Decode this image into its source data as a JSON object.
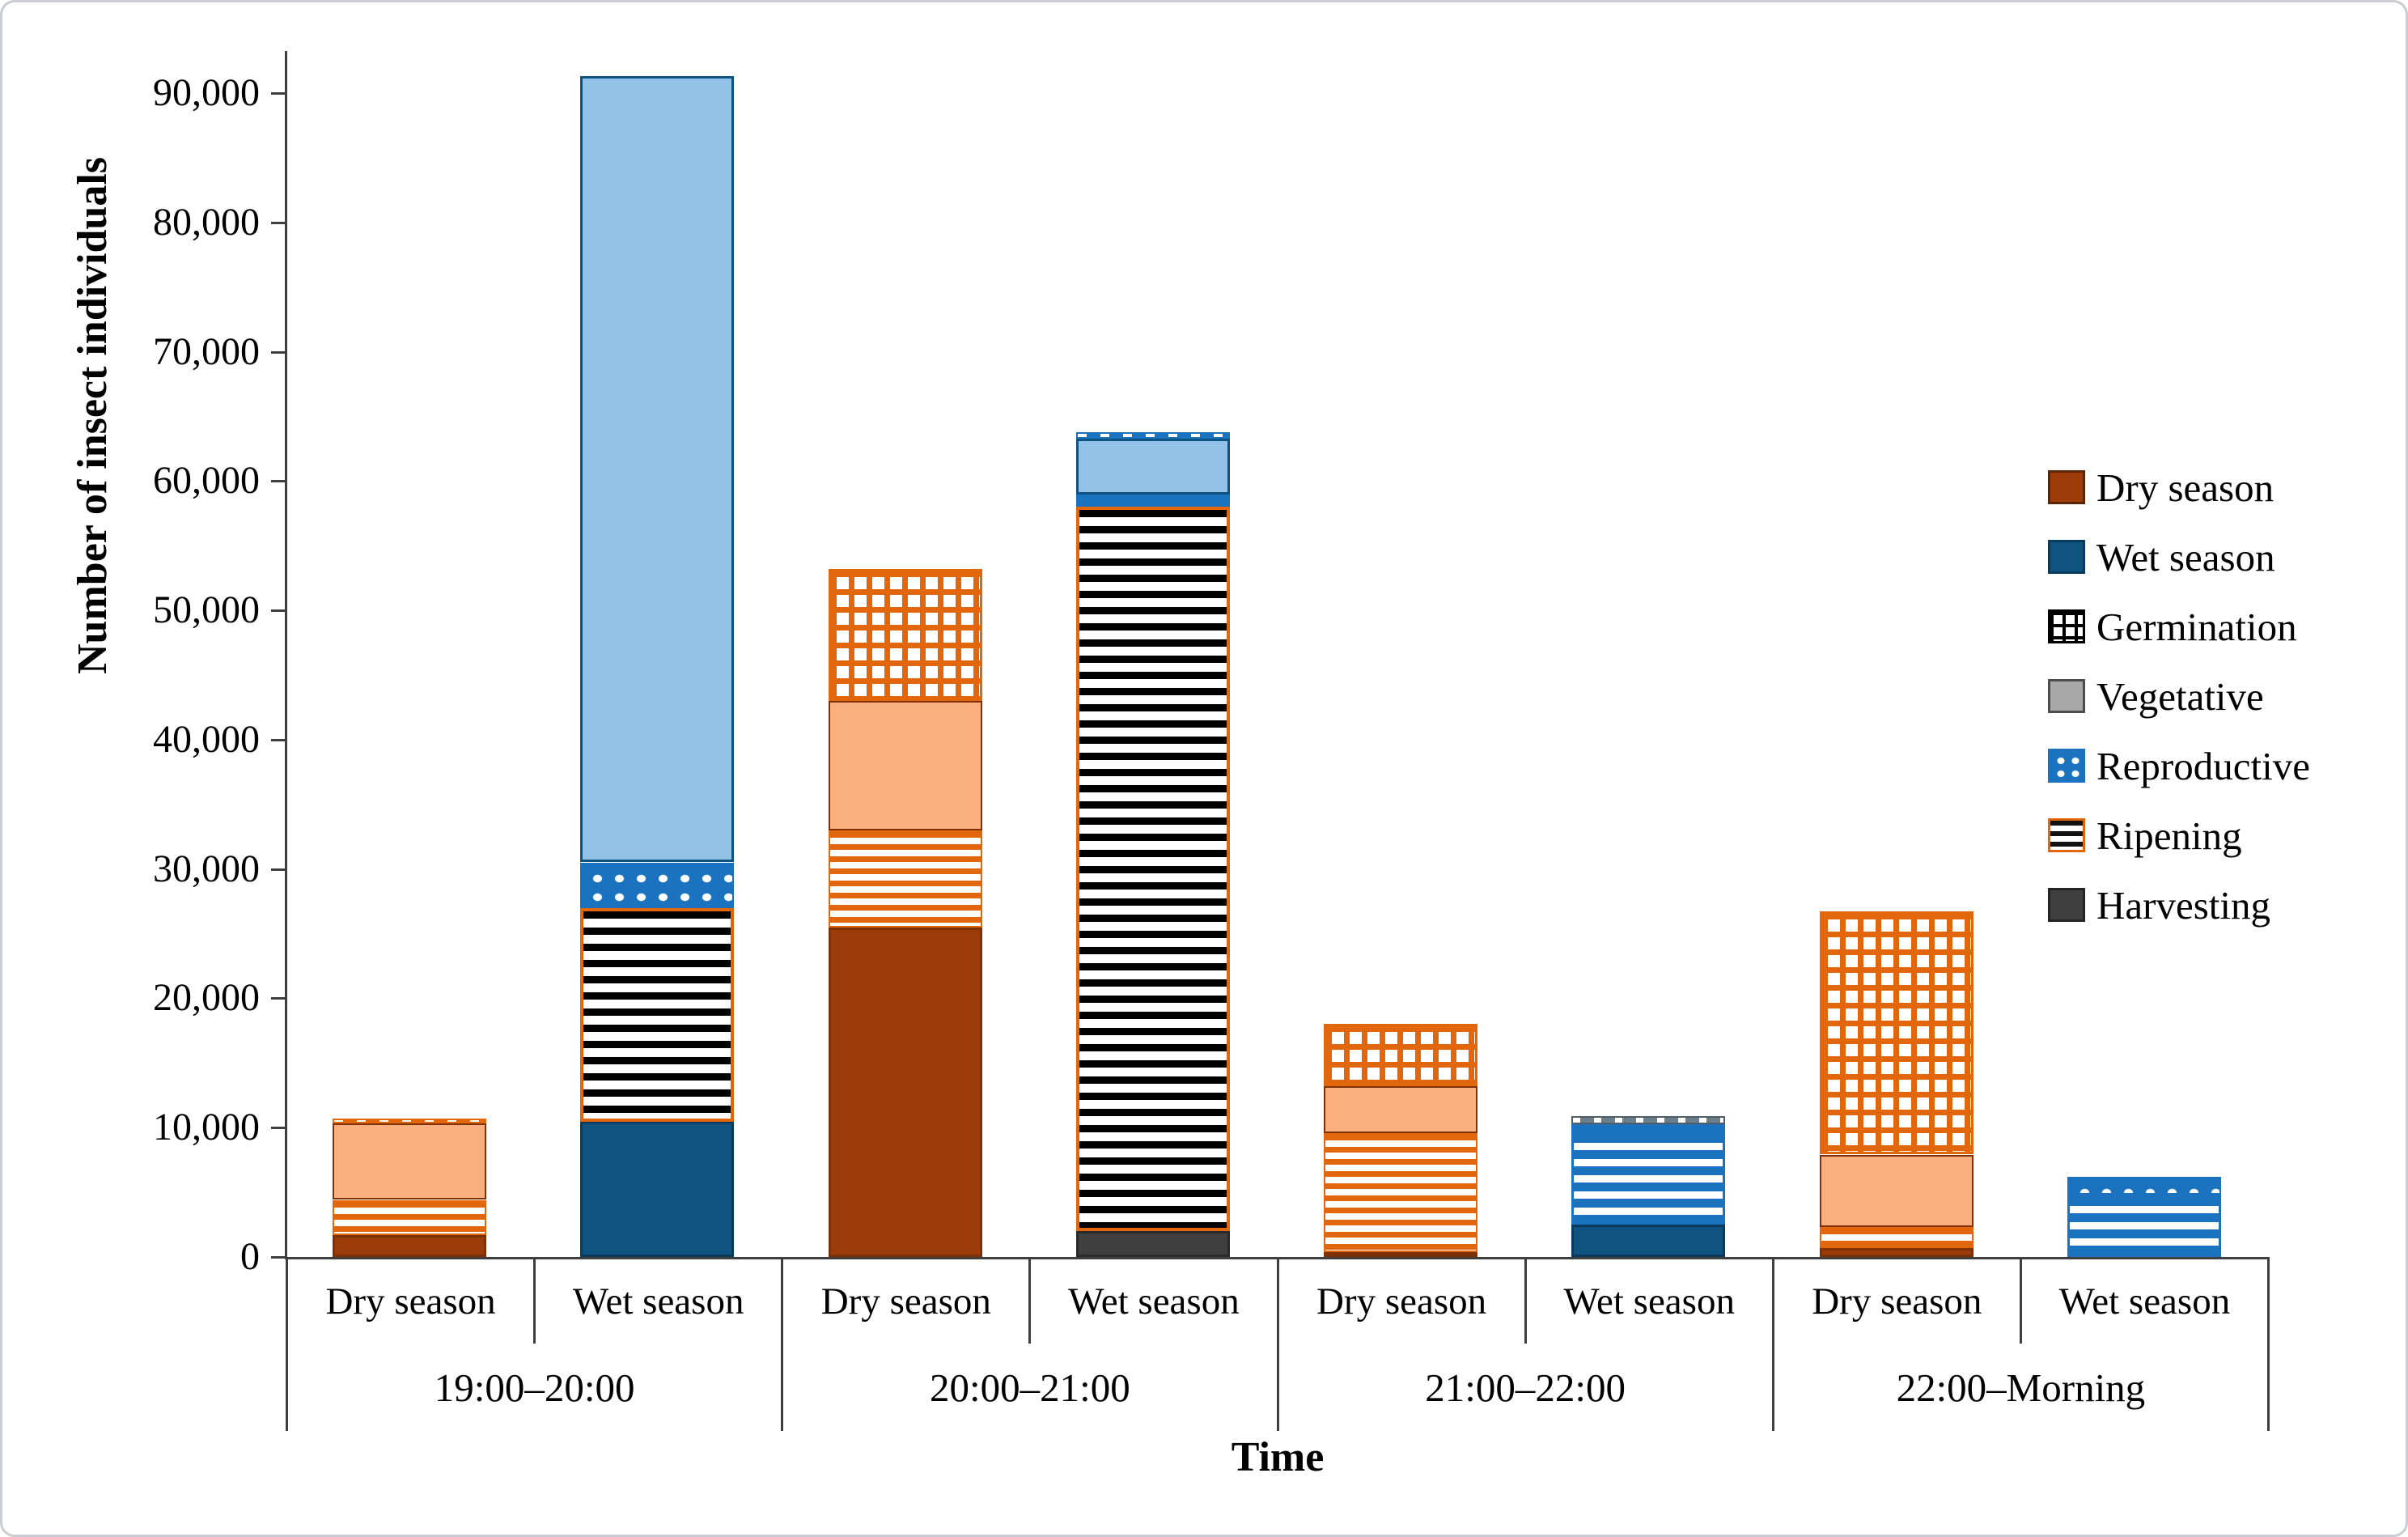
{
  "colors": {
    "dry_season_solid": "#9c3d09",
    "dry_border": "#7e3007",
    "wet_season_solid": "#0f5380",
    "wet_border": "#0a3a5c",
    "bright_orange_pattern": "#e2660c",
    "medium_blue_pattern": "#1b72be",
    "vegetative_dry_peach": "#fbaf7f",
    "vegetative_wet_lightblue": "#92c2e8",
    "vegetative_legend_gray": "#a8a8a8",
    "harvesting_gray": "#3f3f3f",
    "axis_color": "#3f3f3f"
  },
  "chart_data": {
    "type": "bar",
    "stacked": true,
    "xlabel": "Time",
    "ylabel": "Number of insect individuals",
    "ylim": [
      0,
      90000
    ],
    "ytick_step": 10000,
    "grid": false,
    "legend_position": "right",
    "yticks": [
      {
        "value": 0,
        "label": "0"
      },
      {
        "value": 10000,
        "label": "10,000"
      },
      {
        "value": 20000,
        "label": "20,000"
      },
      {
        "value": 30000,
        "label": "30,000"
      },
      {
        "value": 40000,
        "label": "40,000"
      },
      {
        "value": 50000,
        "label": "50,000"
      },
      {
        "value": 60000,
        "label": "60,000"
      },
      {
        "value": 70000,
        "label": "70,000"
      },
      {
        "value": 80000,
        "label": "80,000"
      },
      {
        "value": 90000,
        "label": "90,000"
      }
    ],
    "groups": [
      "19:00–20:00",
      "20:00–21:00",
      "21:00–22:00",
      "22:00–Morning"
    ],
    "legend": [
      {
        "label": "Dry season",
        "swatch": "sw-dry"
      },
      {
        "label": "Wet season",
        "swatch": "sw-wet"
      },
      {
        "label": "Germination",
        "swatch": "sw-germ"
      },
      {
        "label": "Vegetative",
        "swatch": "sw-veg"
      },
      {
        "label": "Reproductive",
        "swatch": "sw-rep"
      },
      {
        "label": "Ripening",
        "swatch": "sw-rip"
      },
      {
        "label": "Harvesting",
        "swatch": "sw-harvest"
      }
    ],
    "bars": [
      {
        "group": 0,
        "season": "Dry season",
        "total": 10700,
        "segments": [
          {
            "stage": "Dry season",
            "style": "s-dry",
            "value": 1700
          },
          {
            "stage": "Ripening",
            "style": "s-ripdry",
            "value": 2700
          },
          {
            "stage": "Vegetative",
            "style": "s-vegdry",
            "value": 5900
          },
          {
            "stage": "Germination",
            "style": "s-germdrythin",
            "value": 400
          }
        ]
      },
      {
        "group": 0,
        "season": "Wet season",
        "total": 91300,
        "segments": [
          {
            "stage": "Wet season",
            "style": "s-wet",
            "value": 10500
          },
          {
            "stage": "Ripening",
            "style": "s-ripblack",
            "value": 16500
          },
          {
            "stage": "Reproductive",
            "style": "s-repdots",
            "value": 3500
          },
          {
            "stage": "Vegetative",
            "style": "s-vegwet",
            "value": 60800
          }
        ]
      },
      {
        "group": 1,
        "season": "Dry season",
        "total": 53200,
        "segments": [
          {
            "stage": "Dry season",
            "style": "s-dry",
            "value": 25500
          },
          {
            "stage": "Ripening",
            "style": "s-ripdry",
            "value": 7500
          },
          {
            "stage": "Vegetative",
            "style": "s-vegdry",
            "value": 10000
          },
          {
            "stage": "Germination",
            "style": "s-germgrid",
            "value": 10200
          }
        ]
      },
      {
        "group": 1,
        "season": "Wet season",
        "total": 63800,
        "segments": [
          {
            "stage": "Harvesting",
            "style": "s-harvest",
            "value": 2000
          },
          {
            "stage": "Ripening",
            "style": "s-ripblack",
            "value": 56000
          },
          {
            "stage": "Reproductive",
            "style": "s-repdots",
            "value": 1000
          },
          {
            "stage": "Vegetative",
            "style": "s-vegwet",
            "value": 4300
          },
          {
            "stage": "Germination",
            "style": "s-germwetthin",
            "value": 500
          }
        ]
      },
      {
        "group": 2,
        "season": "Dry season",
        "total": 18000,
        "segments": [
          {
            "stage": "Dry season",
            "style": "s-dry",
            "value": 400
          },
          {
            "stage": "Ripening",
            "style": "s-ripdry",
            "value": 9200
          },
          {
            "stage": "Vegetative",
            "style": "s-vegdry",
            "value": 3600
          },
          {
            "stage": "Germination",
            "style": "s-germgrid",
            "value": 4800
          }
        ]
      },
      {
        "group": 2,
        "season": "Wet season",
        "total": 10900,
        "segments": [
          {
            "stage": "Wet season",
            "style": "s-wet",
            "value": 2500
          },
          {
            "stage": "Ripening",
            "style": "s-ripblue",
            "value": 7200
          },
          {
            "stage": "Reproductive",
            "style": "s-repdots",
            "value": 600
          },
          {
            "stage": "Vegetative",
            "style": "s-veggray",
            "value": 600
          }
        ]
      },
      {
        "group": 3,
        "season": "Dry season",
        "total": 26700,
        "segments": [
          {
            "stage": "Dry season",
            "style": "s-dry",
            "value": 700
          },
          {
            "stage": "Ripening",
            "style": "s-ripdry",
            "value": 1600
          },
          {
            "stage": "Vegetative",
            "style": "s-vegdry",
            "value": 5600
          },
          {
            "stage": "Germination",
            "style": "s-germgrid",
            "value": 18800
          }
        ]
      },
      {
        "group": 3,
        "season": "Wet season",
        "total": 6200,
        "segments": [
          {
            "stage": "Ripening",
            "style": "s-ripblue",
            "value": 4800
          },
          {
            "stage": "Reproductive",
            "style": "s-repdots",
            "value": 1400
          }
        ]
      }
    ]
  }
}
